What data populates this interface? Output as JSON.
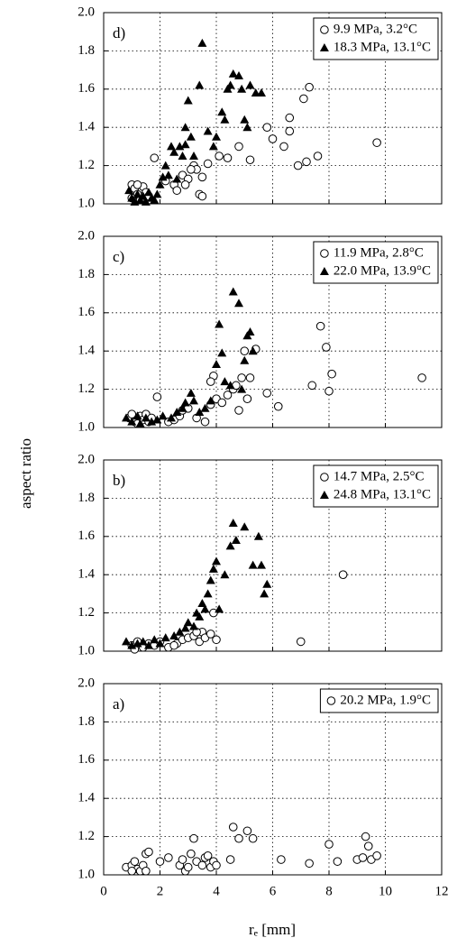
{
  "xlabel": "rₑ [mm]",
  "ylabel": "aspect ratio",
  "chart_data": [
    {
      "type": "scatter",
      "label": "d)",
      "xlim": [
        0,
        12
      ],
      "ylim": [
        1,
        2
      ],
      "xticks": [
        0,
        2,
        4,
        6,
        8,
        10,
        12
      ],
      "yticks": [
        {
          "value": 1,
          "label": "1.0"
        },
        1.2,
        1.4,
        1.6,
        1.8,
        {
          "value": 2,
          "label": "2.0"
        }
      ],
      "grid": true,
      "legend": "top-right",
      "series": [
        {
          "name": "9.9 MPa, 3.2°C",
          "marker": "circle",
          "color": "#000000",
          "x": [
            1.0,
            1.1,
            1.2,
            1.3,
            1.4,
            1.5,
            1.0,
            1.2,
            1.6,
            1.8,
            2.2,
            2.5,
            2.6,
            2.8,
            3.0,
            3.2,
            3.3,
            3.4,
            3.5,
            3.5,
            3.7,
            4.1,
            4.4,
            4.8,
            5.2,
            5.8,
            6.0,
            6.4,
            6.6,
            6.6,
            6.9,
            7.1,
            7.2,
            7.3,
            7.6,
            9.7,
            3.1,
            2.9
          ],
          "values": [
            1.1,
            1.08,
            1.05,
            1.02,
            1.09,
            1.06,
            1.03,
            1.1,
            1.04,
            1.24,
            1.12,
            1.1,
            1.07,
            1.15,
            1.13,
            1.2,
            1.18,
            1.05,
            1.04,
            1.14,
            1.21,
            1.25,
            1.24,
            1.3,
            1.23,
            1.4,
            1.34,
            1.3,
            1.45,
            1.38,
            1.2,
            1.55,
            1.22,
            1.61,
            1.25,
            1.32,
            1.18,
            1.1
          ]
        },
        {
          "name": "18.3 MPa, 13.1°C",
          "marker": "triangle",
          "color": "#000000",
          "x": [
            0.9,
            1.0,
            1.1,
            1.2,
            1.3,
            1.4,
            1.5,
            1.6,
            1.7,
            1.8,
            1.9,
            2.0,
            2.1,
            2.2,
            2.3,
            2.4,
            2.5,
            2.7,
            2.8,
            2.9,
            3.0,
            2.9,
            3.1,
            3.2,
            3.4,
            3.5,
            3.7,
            3.9,
            4.0,
            4.2,
            4.3,
            4.4,
            4.6,
            4.8,
            4.9,
            5.0,
            5.1,
            5.2,
            5.4,
            5.6,
            4.5,
            2.6
          ],
          "values": [
            1.07,
            1.03,
            1.01,
            1.05,
            1.02,
            1.04,
            1.01,
            1.06,
            1.03,
            1.02,
            1.05,
            1.1,
            1.14,
            1.2,
            1.15,
            1.3,
            1.27,
            1.3,
            1.25,
            1.31,
            1.54,
            1.4,
            1.35,
            1.25,
            1.62,
            1.84,
            1.38,
            1.3,
            1.35,
            1.48,
            1.44,
            1.6,
            1.68,
            1.67,
            1.6,
            1.44,
            1.4,
            1.62,
            1.58,
            1.58,
            1.62,
            1.13
          ]
        }
      ]
    },
    {
      "type": "scatter",
      "label": "c)",
      "xlim": [
        0,
        12
      ],
      "ylim": [
        1,
        2
      ],
      "xticks": [
        0,
        2,
        4,
        6,
        8,
        10,
        12
      ],
      "yticks": [
        {
          "value": 1,
          "label": "1.0"
        },
        1.2,
        1.4,
        1.6,
        1.8,
        {
          "value": 2,
          "label": "2.0"
        }
      ],
      "grid": true,
      "legend": "top-right",
      "series": [
        {
          "name": "11.9 MPa, 2.8°C",
          "marker": "circle",
          "color": "#000000",
          "x": [
            0.9,
            1.0,
            1.1,
            1.2,
            1.3,
            1.4,
            1.5,
            1.6,
            1.7,
            2.3,
            2.5,
            2.7,
            2.8,
            3.0,
            3.3,
            3.6,
            3.8,
            3.9,
            4.0,
            4.2,
            4.4,
            4.6,
            4.7,
            4.9,
            5.0,
            5.1,
            5.2,
            5.4,
            5.8,
            6.2,
            7.4,
            7.7,
            7.9,
            8.1,
            8.0,
            11.3,
            3.8,
            4.8,
            1.9
          ],
          "values": [
            1.05,
            1.07,
            1.03,
            1.02,
            1.06,
            1.04,
            1.07,
            1.03,
            1.05,
            1.03,
            1.04,
            1.06,
            1.09,
            1.1,
            1.05,
            1.03,
            1.12,
            1.27,
            1.15,
            1.13,
            1.17,
            1.2,
            1.22,
            1.26,
            1.4,
            1.15,
            1.26,
            1.41,
            1.18,
            1.11,
            1.22,
            1.53,
            1.42,
            1.28,
            1.19,
            1.26,
            1.24,
            1.09,
            1.16
          ]
        },
        {
          "name": "22.0 MPa, 13.9°C",
          "marker": "triangle",
          "color": "#000000",
          "x": [
            0.8,
            1.0,
            1.2,
            1.3,
            1.5,
            1.7,
            1.9,
            2.1,
            2.4,
            2.6,
            2.8,
            2.9,
            3.1,
            3.2,
            3.4,
            3.6,
            3.8,
            4.0,
            4.1,
            4.2,
            4.3,
            4.5,
            4.6,
            4.8,
            5.0,
            5.1,
            5.2,
            5.3,
            4.9
          ],
          "values": [
            1.05,
            1.03,
            1.06,
            1.02,
            1.05,
            1.03,
            1.04,
            1.06,
            1.05,
            1.08,
            1.1,
            1.13,
            1.18,
            1.14,
            1.08,
            1.1,
            1.14,
            1.33,
            1.54,
            1.39,
            1.24,
            1.22,
            1.71,
            1.65,
            1.35,
            1.48,
            1.5,
            1.4,
            1.2
          ]
        }
      ]
    },
    {
      "type": "scatter",
      "label": "b)",
      "xlim": [
        0,
        12
      ],
      "ylim": [
        1,
        2
      ],
      "xticks": [
        0,
        2,
        4,
        6,
        8,
        10,
        12
      ],
      "yticks": [
        {
          "value": 1,
          "label": "1.0"
        },
        1.2,
        1.4,
        1.6,
        1.8,
        {
          "value": 2,
          "label": "2.0"
        }
      ],
      "grid": true,
      "legend": "top-right",
      "series": [
        {
          "name": "14.7 MPa, 2.5°C",
          "marker": "circle",
          "color": "#000000",
          "x": [
            1.0,
            1.2,
            1.4,
            1.6,
            1.8,
            2.0,
            2.3,
            2.6,
            2.8,
            3.0,
            3.2,
            3.4,
            3.5,
            3.6,
            3.8,
            3.9,
            4.0,
            2.5,
            7.0,
            8.5,
            1.1,
            3.3
          ],
          "values": [
            1.03,
            1.05,
            1.02,
            1.04,
            1.03,
            1.05,
            1.02,
            1.04,
            1.06,
            1.07,
            1.08,
            1.05,
            1.1,
            1.07,
            1.09,
            1.2,
            1.06,
            1.03,
            1.05,
            1.4,
            1.01,
            1.1
          ]
        },
        {
          "name": "24.8 MPa, 13.1°C",
          "marker": "triangle",
          "color": "#000000",
          "x": [
            0.8,
            1.0,
            1.2,
            1.4,
            1.6,
            1.8,
            2.0,
            2.2,
            2.5,
            2.7,
            2.9,
            3.0,
            3.2,
            3.4,
            3.5,
            3.6,
            3.7,
            3.8,
            3.9,
            4.0,
            4.1,
            4.5,
            4.6,
            4.7,
            5.0,
            5.3,
            5.5,
            5.6,
            5.7,
            5.8,
            4.3,
            3.3
          ],
          "values": [
            1.05,
            1.03,
            1.04,
            1.05,
            1.03,
            1.06,
            1.04,
            1.07,
            1.08,
            1.1,
            1.12,
            1.15,
            1.13,
            1.18,
            1.25,
            1.22,
            1.3,
            1.37,
            1.43,
            1.47,
            1.22,
            1.55,
            1.67,
            1.58,
            1.65,
            1.45,
            1.6,
            1.45,
            1.3,
            1.35,
            1.4,
            1.2
          ]
        }
      ]
    },
    {
      "type": "scatter",
      "label": "a)",
      "xlim": [
        0,
        12
      ],
      "ylim": [
        1,
        2
      ],
      "xticks": [
        0,
        2,
        4,
        6,
        8,
        10,
        12
      ],
      "xticklabels": true,
      "yticks": [
        {
          "value": 1,
          "label": "1.0"
        },
        1.2,
        1.4,
        1.6,
        1.8,
        {
          "value": 2,
          "label": "2.0"
        }
      ],
      "grid": true,
      "legend": "top-right",
      "series": [
        {
          "name": "20.2 MPa, 1.9°C",
          "marker": "circle",
          "color": "#000000",
          "x": [
            0.8,
            1.0,
            1.1,
            1.2,
            1.3,
            1.4,
            1.5,
            1.6,
            1.5,
            2.0,
            2.3,
            2.7,
            2.8,
            2.9,
            3.0,
            3.1,
            3.2,
            3.3,
            3.5,
            3.6,
            3.7,
            3.8,
            3.9,
            4.0,
            4.5,
            4.6,
            4.8,
            5.1,
            5.3,
            6.3,
            7.3,
            8.0,
            8.3,
            9.0,
            9.2,
            9.3,
            9.4,
            9.5,
            9.7,
            1.0
          ],
          "values": [
            1.04,
            1.05,
            1.07,
            1.03,
            1.02,
            1.05,
            1.11,
            1.12,
            1.02,
            1.07,
            1.09,
            1.05,
            1.08,
            1.02,
            1.04,
            1.11,
            1.19,
            1.07,
            1.05,
            1.09,
            1.1,
            1.04,
            1.07,
            1.05,
            1.08,
            1.25,
            1.19,
            1.23,
            1.19,
            1.08,
            1.06,
            1.16,
            1.07,
            1.08,
            1.09,
            1.2,
            1.15,
            1.08,
            1.1,
            1.02
          ]
        }
      ]
    }
  ]
}
